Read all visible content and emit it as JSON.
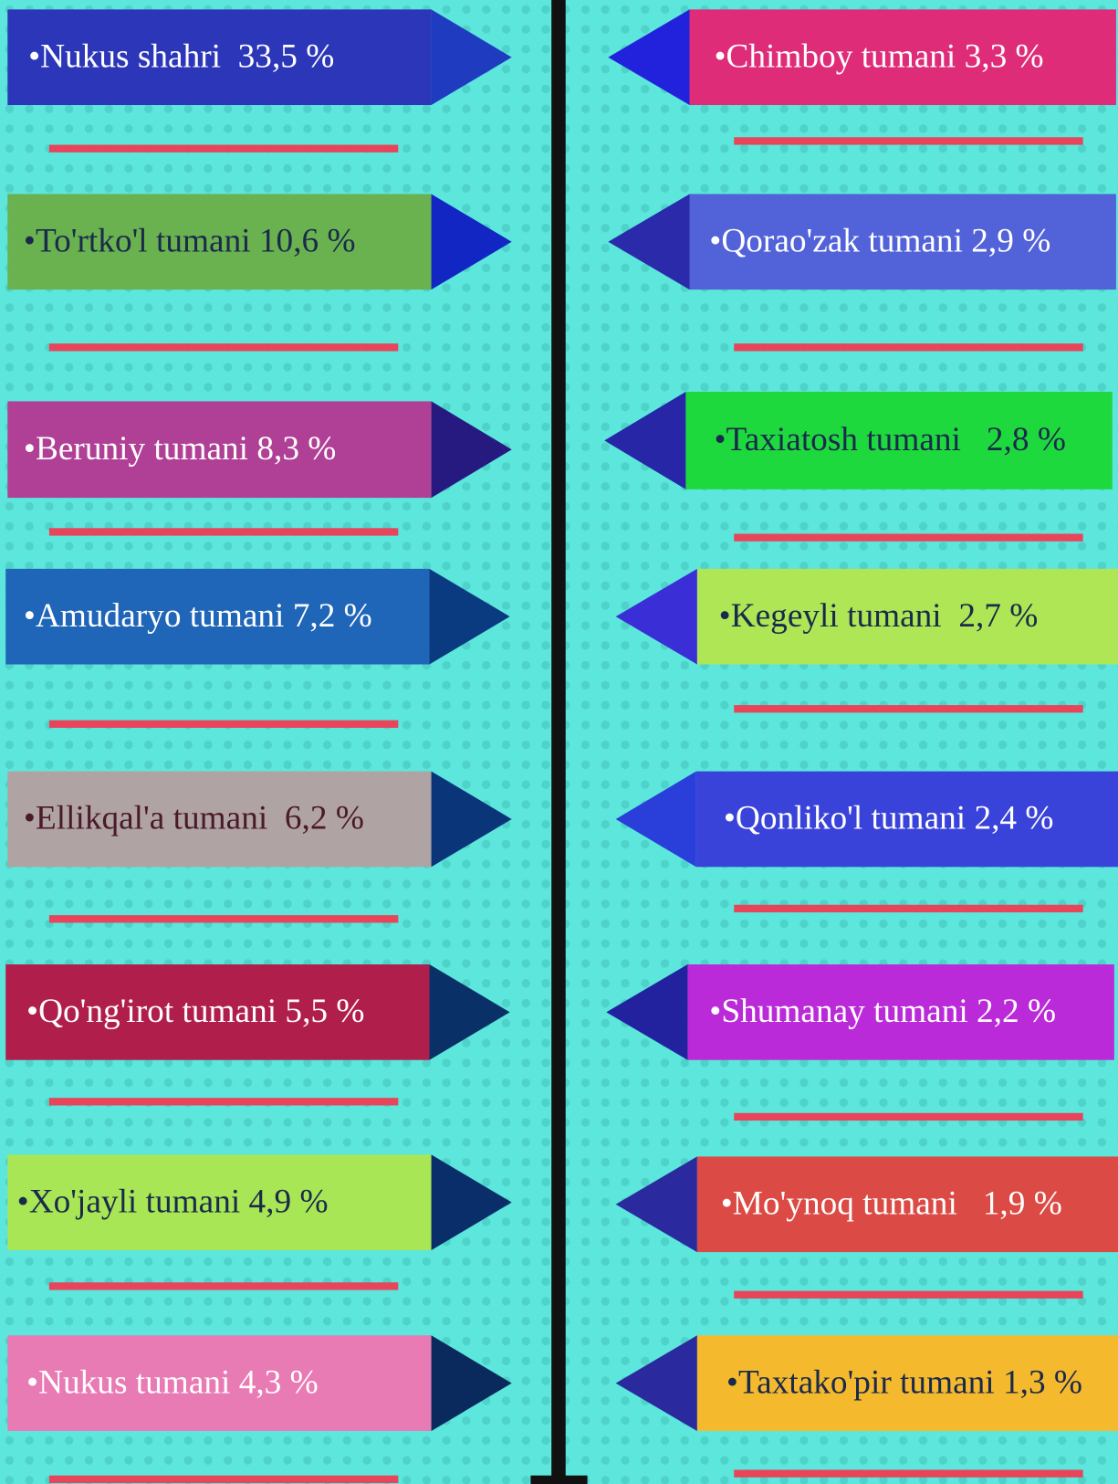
{
  "left": [
    {
      "label": "•Nukus shahri  33,5 %",
      "fill": "#2b37b8",
      "text_color": "#ffffff",
      "arrow_color": "#1f3cc0"
    },
    {
      "label": "•To'rtko'l tumani 10,6 %",
      "fill": "#6ab150",
      "text_color": "#1a2a4a",
      "arrow_color": "#1226c4"
    },
    {
      "label": "•Beruniy tumani 8,3 %",
      "fill": "#b04096",
      "text_color": "#ffffff",
      "arrow_color": "#261a80"
    },
    {
      "label": "•Amudaryo tumani 7,2 %",
      "fill": "#1f65b8",
      "text_color": "#ffffff",
      "arrow_color": "#0a3a80"
    },
    {
      "label": "•Ellikqal'a tumani  6,2 %",
      "fill": "#b0a3a3",
      "text_color": "#4a1a2a",
      "arrow_color": "#0a3578"
    },
    {
      "label": "•Qo'ng'irot tumani 5,5 %",
      "fill": "#b01e4c",
      "text_color": "#ffffff",
      "arrow_color": "#0a3068"
    },
    {
      "label": "•Xo'jayli tumani 4,9 %",
      "fill": "#a9e655",
      "text_color": "#1a2a4a",
      "arrow_color": "#0a2e6a"
    },
    {
      "label": "•Nukus tumani 4,3 %",
      "fill": "#e87ab4",
      "text_color": "#ffffff",
      "arrow_color": "#0a2a5e"
    }
  ],
  "right": [
    {
      "label": "•Chimboy tumani 3,3 %",
      "fill": "#de2c78",
      "text_color": "#ffffff",
      "arrow_color": "#2222dd"
    },
    {
      "label": "•Qorao'zak tumani 2,9 %",
      "fill": "#5262d9",
      "text_color": "#ffffff",
      "arrow_color": "#2a2aaa"
    },
    {
      "label": "•Taxiatosh tumani   2,8 %",
      "fill": "#1ed93e",
      "text_color": "#1a2a4a",
      "arrow_color": "#2626a6"
    },
    {
      "label": "•Kegeyli tumani  2,7 %",
      "fill": "#aee655",
      "text_color": "#1a2a4a",
      "arrow_color": "#3a2ed6"
    },
    {
      "label": "•Qonliko'l tumani 2,4 %",
      "fill": "#3a43d9",
      "text_color": "#ffffff",
      "arrow_color": "#2a3ed9"
    },
    {
      "label": "•Shumanay tumani 2,2 %",
      "fill": "#bb2ad9",
      "text_color": "#ffffff",
      "arrow_color": "#22229e"
    },
    {
      "label": "•Mo'ynoq tumani   1,9 %",
      "fill": "#db4a44",
      "text_color": "#ffffff",
      "arrow_color": "#2a2a9e"
    },
    {
      "label": "•Taxtako'pir tumani 1,3 %",
      "fill": "#f5b92e",
      "text_color": "#1a2a4a",
      "arrow_color": "#2a2a9e"
    }
  ]
}
